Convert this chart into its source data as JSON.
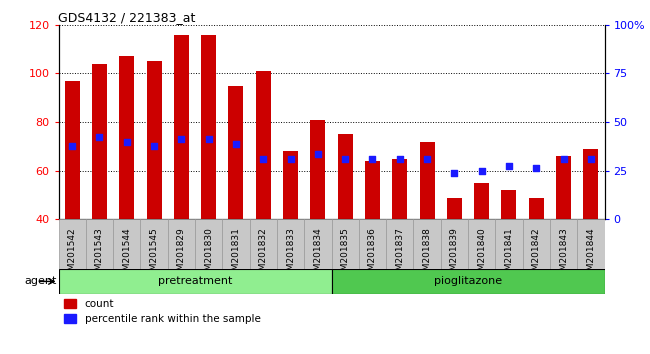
{
  "title": "GDS4132 / 221383_at",
  "samples": [
    "GSM201542",
    "GSM201543",
    "GSM201544",
    "GSM201545",
    "GSM201829",
    "GSM201830",
    "GSM201831",
    "GSM201832",
    "GSM201833",
    "GSM201834",
    "GSM201835",
    "GSM201836",
    "GSM201837",
    "GSM201838",
    "GSM201839",
    "GSM201840",
    "GSM201841",
    "GSM201842",
    "GSM201843",
    "GSM201844"
  ],
  "counts": [
    97,
    104,
    107,
    105,
    116,
    116,
    95,
    101,
    68,
    81,
    75,
    64,
    65,
    72,
    49,
    55,
    52,
    49,
    66,
    69
  ],
  "percentile_ranks": [
    70,
    74,
    72,
    70,
    73,
    73,
    71,
    65,
    65,
    67,
    65,
    65,
    65,
    65,
    59,
    60,
    62,
    61,
    65,
    65
  ],
  "bar_color": "#CC0000",
  "blue_color": "#1a1aff",
  "ylim_left": [
    40,
    120
  ],
  "ylim_right": [
    0,
    100
  ],
  "yticks_left": [
    40,
    60,
    80,
    100,
    120
  ],
  "yticks_right": [
    0,
    25,
    50,
    75,
    100
  ],
  "ytick_labels_right": [
    "0",
    "25",
    "50",
    "75",
    "100%"
  ],
  "pretreatment_n": 10,
  "pioglitazone_n": 10,
  "pretreatment_color": "#90EE90",
  "pioglitazone_color": "#50C850",
  "agent_label": "agent",
  "pretreatment_label": "pretreatment",
  "pioglitazone_label": "pioglitazone",
  "legend_count_label": "count",
  "legend_pct_label": "percentile rank within the sample"
}
